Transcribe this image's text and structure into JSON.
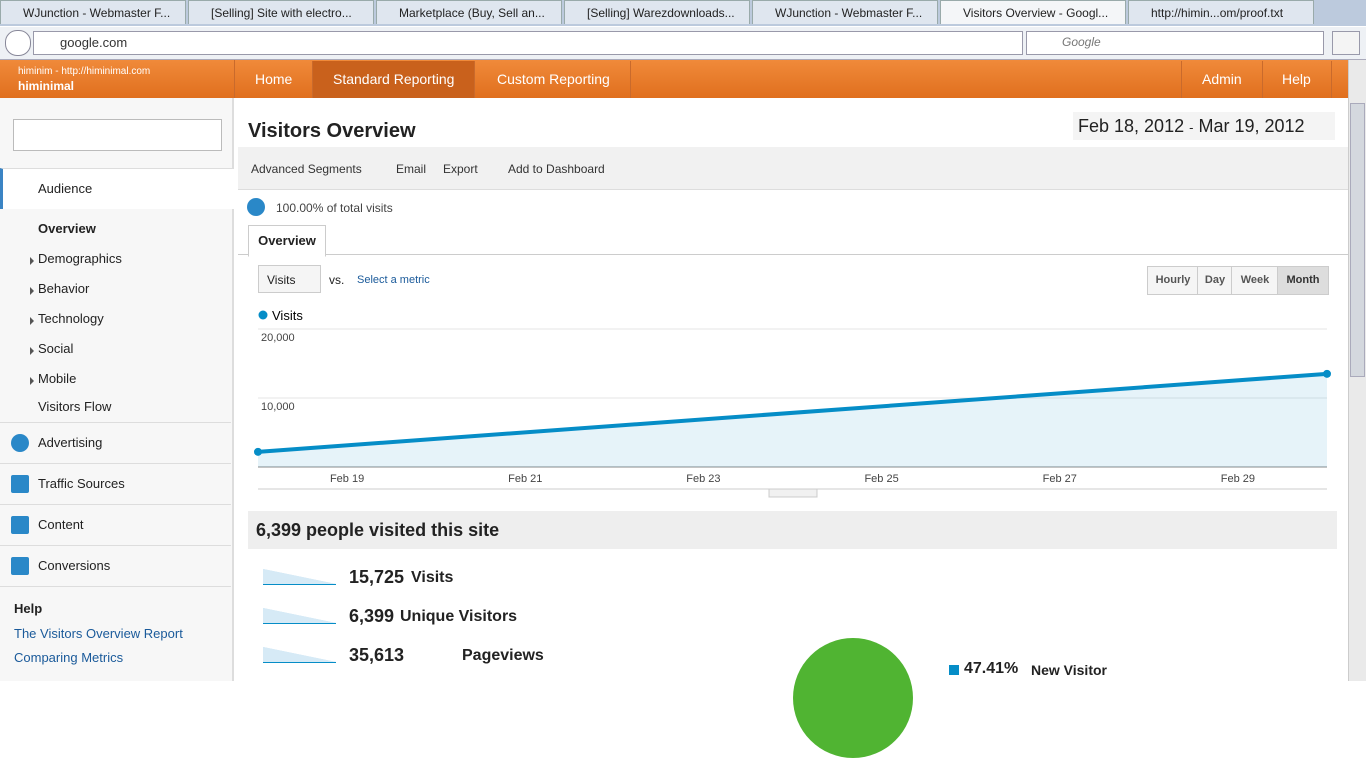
{
  "browser": {
    "tabs": [
      "WJunction - Webmaster F...",
      "[Selling] Site with electro...",
      "Marketplace (Buy, Sell an...",
      "[Selling] Warezdownloads...",
      "WJunction - Webmaster F...",
      "Visitors Overview - Googl...",
      "http://himin...om/proof.txt"
    ],
    "url": "google.com",
    "search": "Google"
  },
  "header": {
    "account": "himinim - http://himinimal.com",
    "property": "himinimal",
    "nav": [
      "Home",
      "Standard Reporting",
      "Custom Reporting"
    ],
    "admin": "Admin",
    "help": "Help"
  },
  "sidebar": {
    "audience": "Audience",
    "audience_items": [
      "Overview",
      "Demographics",
      "Behavior",
      "Technology",
      "Social",
      "Mobile",
      "Visitors Flow"
    ],
    "sections": [
      "Advertising",
      "Traffic Sources",
      "Content",
      "Conversions"
    ],
    "help_title": "Help",
    "help_links": [
      "The Visitors Overview Report",
      "Comparing Metrics"
    ]
  },
  "report": {
    "title": "Visitors Overview",
    "date_start": "Feb 18, 2012",
    "date_sep": "-",
    "date_end": "Mar 19, 2012",
    "toolbar": [
      "Advanced Segments",
      "Email",
      "Export",
      "Add to Dashboard"
    ],
    "segment": "100.00% of total visits",
    "tab": "Overview",
    "metric": "Visits",
    "vs": "vs.",
    "select_metric": "Select a metric",
    "granularity": [
      "Hourly",
      "Day",
      "Week",
      "Month"
    ],
    "summary": "6,399 people visited this site",
    "metrics": [
      {
        "value": "15,725",
        "label": "Visits"
      },
      {
        "value": "6,399",
        "label": "Unique Visitors"
      },
      {
        "value": "35,613",
        "label": "Pageviews"
      }
    ],
    "pie_value": "47.41%",
    "pie_label": "New Visitor"
  },
  "chart_data": {
    "type": "line",
    "x": [
      "Feb 18",
      "Mar 1"
    ],
    "xlim": [
      "Feb 18",
      "Mar 1"
    ],
    "xticks": [
      "Feb 19",
      "Feb 21",
      "Feb 23",
      "Feb 25",
      "Feb 27",
      "Feb 29"
    ],
    "series": [
      {
        "name": "Visits",
        "color": "#058dc7",
        "values": [
          2200,
          13500
        ]
      }
    ],
    "ylim": [
      0,
      20000
    ],
    "yticks": [
      {
        "value": 10000,
        "label": "10,000"
      },
      {
        "value": 20000,
        "label": "20,000"
      }
    ],
    "grid": true
  }
}
